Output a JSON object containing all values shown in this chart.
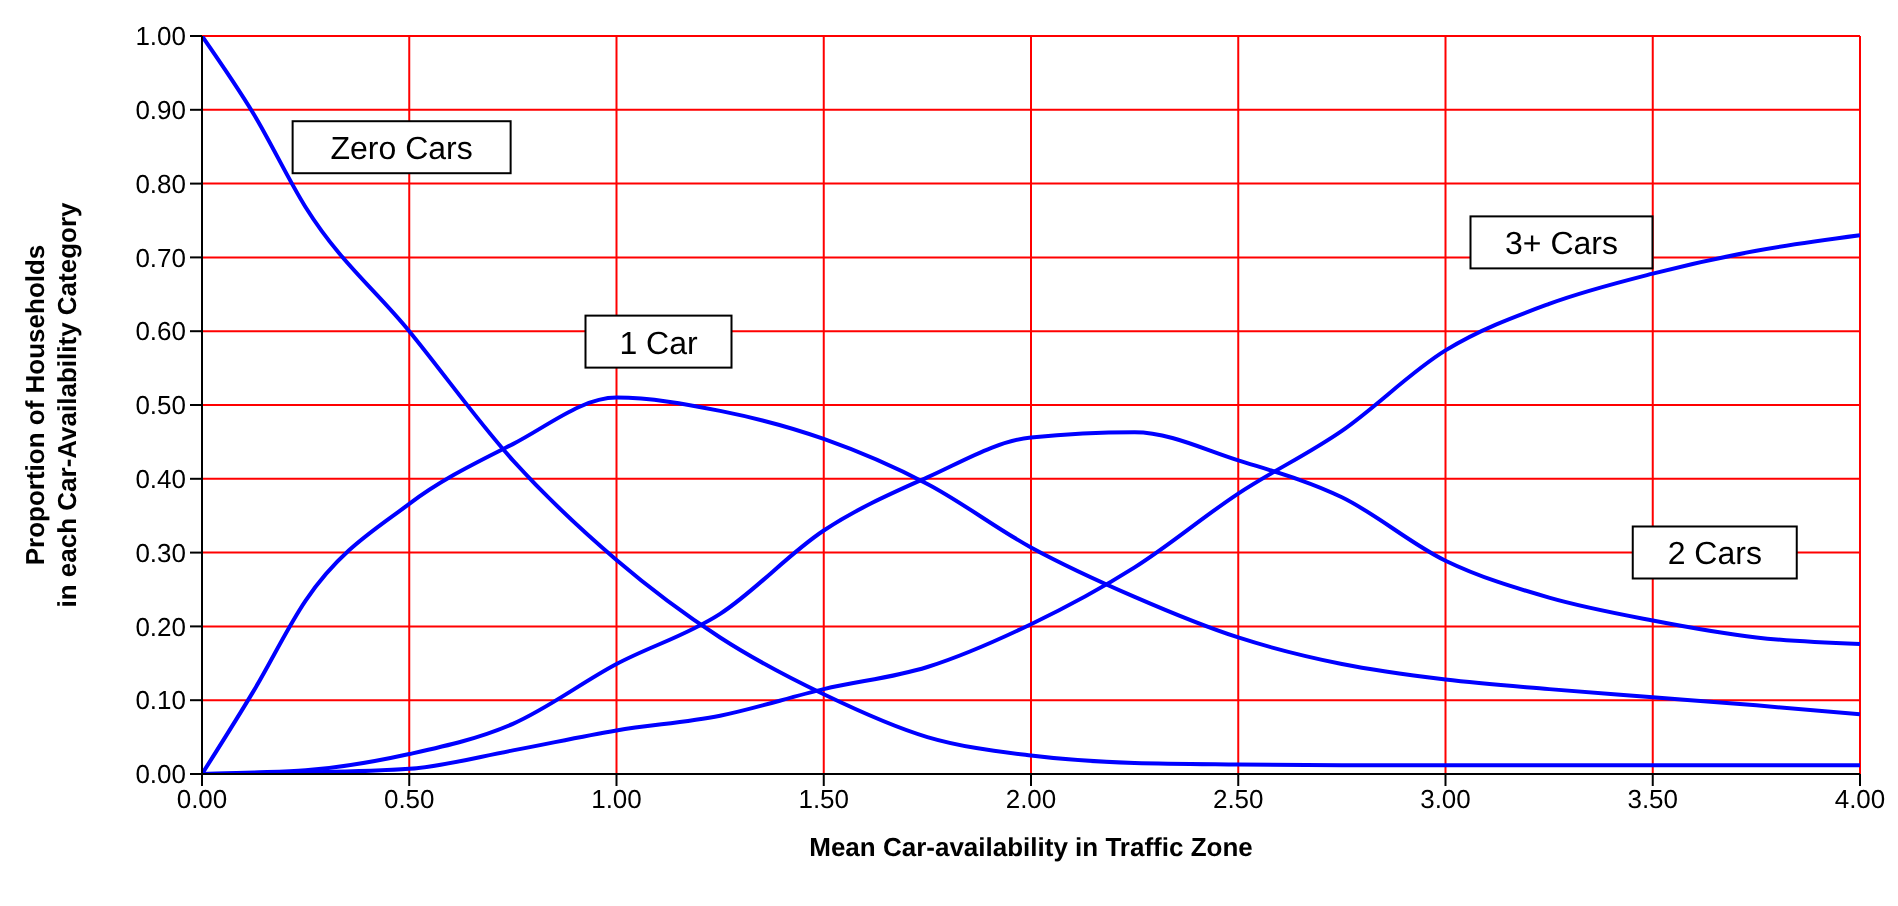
{
  "chart_data": {
    "type": "line",
    "xlabel": "Mean Car-availability in Traffic Zone",
    "ylabel": "Proportion of Households\nin each Car-Availability Category",
    "x": [
      0,
      0.125,
      0.25,
      0.5,
      0.75,
      1,
      1.25,
      1.5,
      1.75,
      2,
      2.25,
      2.5,
      2.75,
      3,
      3.25,
      3.5,
      3.75,
      4
    ],
    "series": [
      {
        "name": "Zero Cars",
        "color": "#0000ff",
        "values": [
          1.0,
          0.894,
          0.768,
          0.6,
          0.425,
          0.29,
          0.185,
          0.108,
          0.05,
          0.025,
          0.015,
          0.013,
          0.012,
          0.012,
          0.012,
          0.012,
          0.012,
          0.012
        ]
      },
      {
        "name": "1 Car",
        "color": "#0000ff",
        "values": [
          0,
          0.113,
          0.235,
          0.366,
          0.447,
          0.51,
          0.492,
          0.454,
          0.393,
          0.307,
          0.24,
          0.185,
          0.149,
          0.128,
          0.115,
          0.104,
          0.093,
          0.081
        ]
      },
      {
        "name": "2 Cars",
        "color": "#0000ff",
        "values": [
          0,
          0.002,
          0.005,
          0.027,
          0.068,
          0.149,
          0.217,
          0.33,
          0.402,
          0.456,
          0.463,
          0.425,
          0.375,
          0.289,
          0.239,
          0.208,
          0.185,
          0.176
        ]
      },
      {
        "name": "3+ Cars",
        "color": "#0000ff",
        "values": [
          0,
          0.001,
          0.002,
          0.007,
          0.032,
          0.059,
          0.079,
          0.115,
          0.145,
          0.203,
          0.28,
          0.38,
          0.465,
          0.574,
          0.637,
          0.678,
          0.709,
          0.73
        ]
      }
    ],
    "xlim": [
      0,
      4
    ],
    "xticks": [
      {
        "value": 0,
        "label": "0.00"
      },
      {
        "value": 0.5,
        "label": "0.50"
      },
      {
        "value": 1,
        "label": "1.00"
      },
      {
        "value": 1.5,
        "label": "1.50"
      },
      {
        "value": 2,
        "label": "2.00"
      },
      {
        "value": 2.5,
        "label": "2.50"
      },
      {
        "value": 3,
        "label": "3.00"
      },
      {
        "value": 3.5,
        "label": "3.50"
      },
      {
        "value": 4,
        "label": "4.00"
      }
    ],
    "ylim": [
      0,
      1
    ],
    "yticks": [
      {
        "value": 0,
        "label": "0.00"
      },
      {
        "value": 0.1,
        "label": "0.10"
      },
      {
        "value": 0.2,
        "label": "0.20"
      },
      {
        "value": 0.3,
        "label": "0.30"
      },
      {
        "value": 0.4,
        "label": "0.40"
      },
      {
        "value": 0.5,
        "label": "0.50"
      },
      {
        "value": 0.6,
        "label": "0.60"
      },
      {
        "value": 0.7,
        "label": "0.70"
      },
      {
        "value": 0.8,
        "label": "0.80"
      },
      {
        "value": 0.9,
        "label": "0.90"
      },
      {
        "value": 1,
        "label": "1.00"
      }
    ],
    "grid": true,
    "marker": "none",
    "line_style": "solid"
  }
}
